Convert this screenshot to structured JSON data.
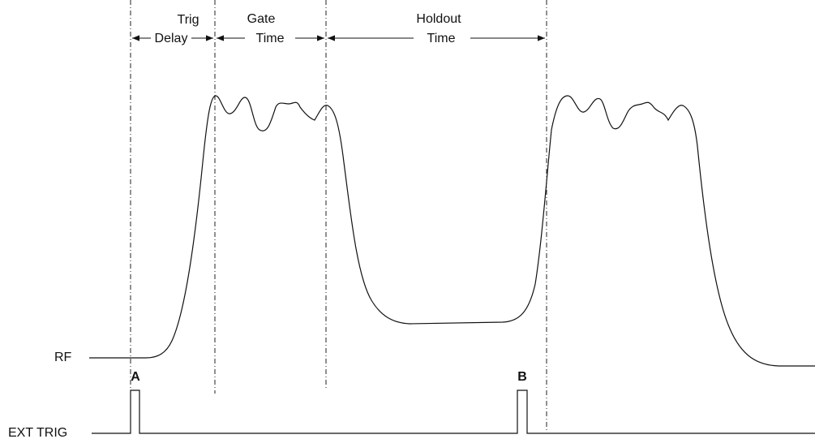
{
  "intervals": [
    {
      "label": [
        "Trig",
        "Delay"
      ]
    },
    {
      "label": [
        "Gate",
        "Time"
      ]
    },
    {
      "label": [
        "Holdout",
        "Time"
      ]
    }
  ],
  "signals": {
    "rf": "RF",
    "ext_trig": "EXT TRIG"
  },
  "markers": [
    "A",
    "B"
  ]
}
